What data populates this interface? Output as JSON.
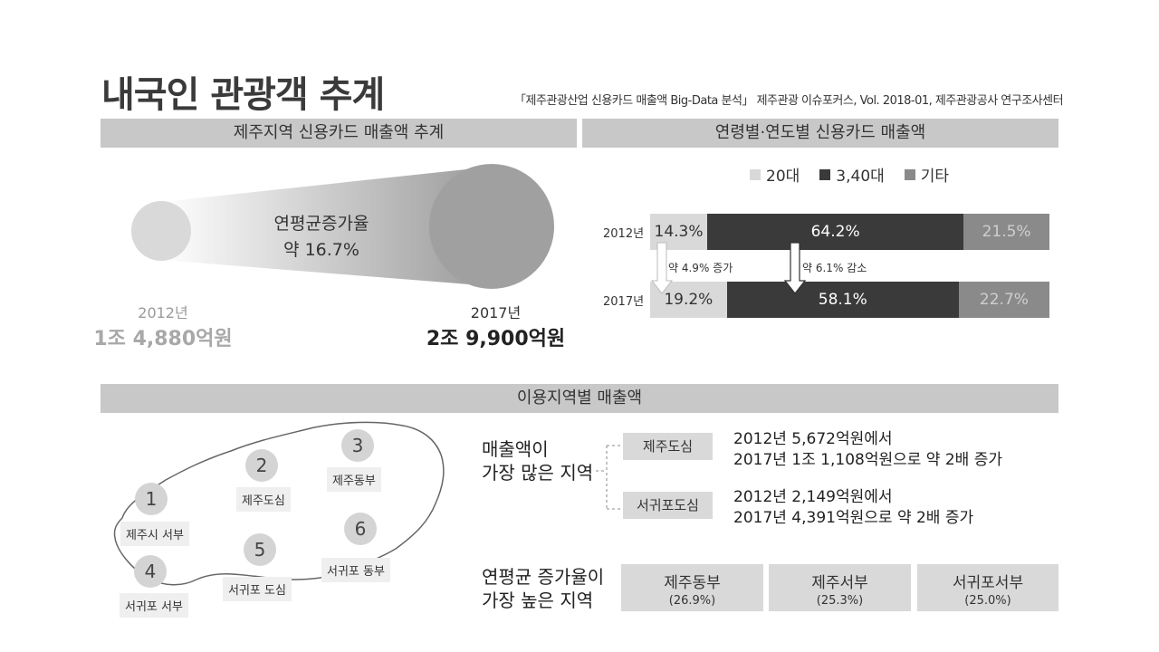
{
  "header": {
    "title": "내국인 관광객 추계",
    "source": "「제주관광산업 신용카드 매출액 Big-Data 분석」 제주관광 이슈포커스, Vol. 2018-01, 제주관광공사 연구조사센터"
  },
  "section1": {
    "band": "제주지역 신용카드 매출액 추계",
    "growth_label": "연평균증가율",
    "growth_value": "약 16.7%",
    "left_year": "2012년",
    "left_amount": "1조 4,880억원",
    "right_year": "2017년",
    "right_amount": "2조 9,900억원"
  },
  "section2": {
    "band": "연령별·연도별 신용카드 매출액",
    "legend": [
      {
        "label": "20대",
        "color": "#d9d9d9"
      },
      {
        "label": "3,40대",
        "color": "#3a3a3a"
      },
      {
        "label": "기타",
        "color": "#8a8a8a"
      }
    ],
    "rows": [
      {
        "year": "2012년",
        "values": [
          "14.3%",
          "64.2%",
          "21.5%"
        ],
        "shares": [
          14.3,
          64.2,
          21.5
        ]
      },
      {
        "year": "2017년",
        "values": [
          "19.2%",
          "58.1%",
          "22.7%"
        ],
        "shares": [
          19.2,
          58.1,
          22.7
        ]
      }
    ],
    "change_20s": "약 4.9% 증가",
    "change_3040s": "약 6.1% 감소"
  },
  "section3": {
    "band": "이용지역별 매출액",
    "map": [
      {
        "num": "1",
        "label": "제주시 서부"
      },
      {
        "num": "2",
        "label": "제주도심"
      },
      {
        "num": "3",
        "label": "제주동부"
      },
      {
        "num": "4",
        "label": "서귀포 서부"
      },
      {
        "num": "5",
        "label": "서귀포 도심"
      },
      {
        "num": "6",
        "label": "서귀포 동부"
      }
    ],
    "top_sales_title_1": "매출액이",
    "top_sales_title_2": "가장 많은 지역",
    "top_sales": [
      {
        "region": "제주도심",
        "line1": "2012년 5,672억원에서",
        "line2": "2017년 1조 1,108억원으로 약 2배 증가"
      },
      {
        "region": "서귀포도심",
        "line1": "2012년 2,149억원에서",
        "line2": "2017년 4,391억원으로 약 2배 증가"
      }
    ],
    "growth_title_1": "연평균 증가율이",
    "growth_title_2": "가장 높은 지역",
    "growth_regions": [
      {
        "name": "제주동부",
        "rate": "(26.9%)"
      },
      {
        "name": "제주서부",
        "rate": "(25.3%)"
      },
      {
        "name": "서귀포서부",
        "rate": "(25.0%)"
      }
    ]
  }
}
